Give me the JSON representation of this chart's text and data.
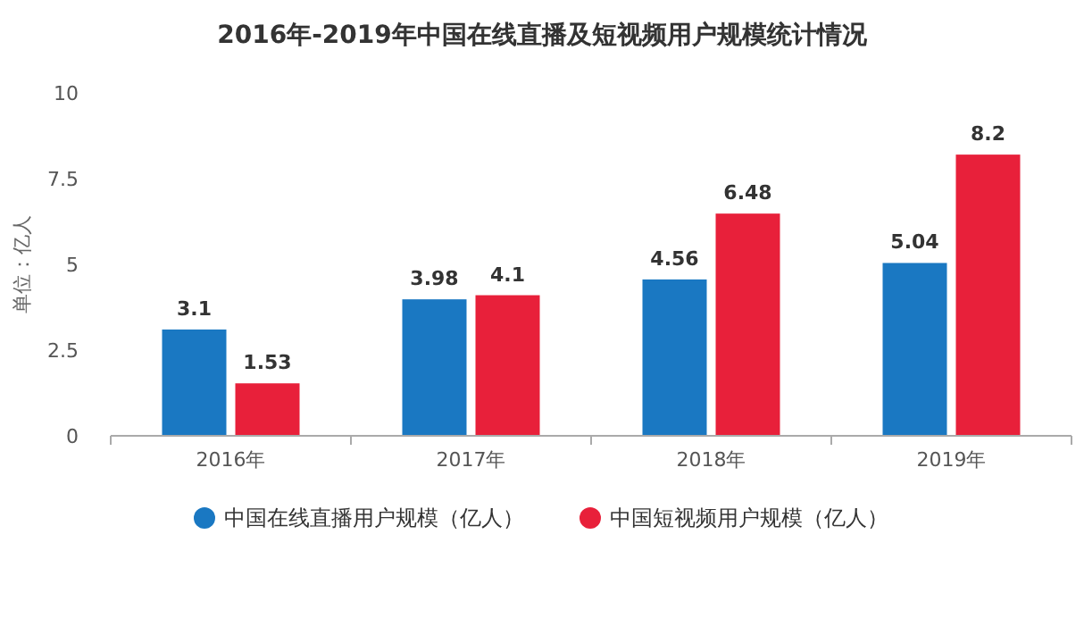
{
  "chart_data": {
    "type": "bar",
    "title": "2016年-2019年中国在线直播及短视频用户规模统计情况",
    "ylabel": "单位：亿人",
    "categories": [
      "2016年",
      "2017年",
      "2018年",
      "2019年"
    ],
    "series": [
      {
        "name": "中国在线直播用户规模（亿人）",
        "color": "#1a78c2",
        "values": [
          3.1,
          3.98,
          4.56,
          5.04
        ]
      },
      {
        "name": "中国短视频用户规模（亿人）",
        "color": "#e8203a",
        "values": [
          1.53,
          4.1,
          6.48,
          8.2
        ]
      }
    ],
    "ylim": [
      0,
      10
    ],
    "yticks": [
      0,
      2.5,
      5,
      7.5,
      10
    ],
    "data_labels": true,
    "legend": "bottom"
  }
}
